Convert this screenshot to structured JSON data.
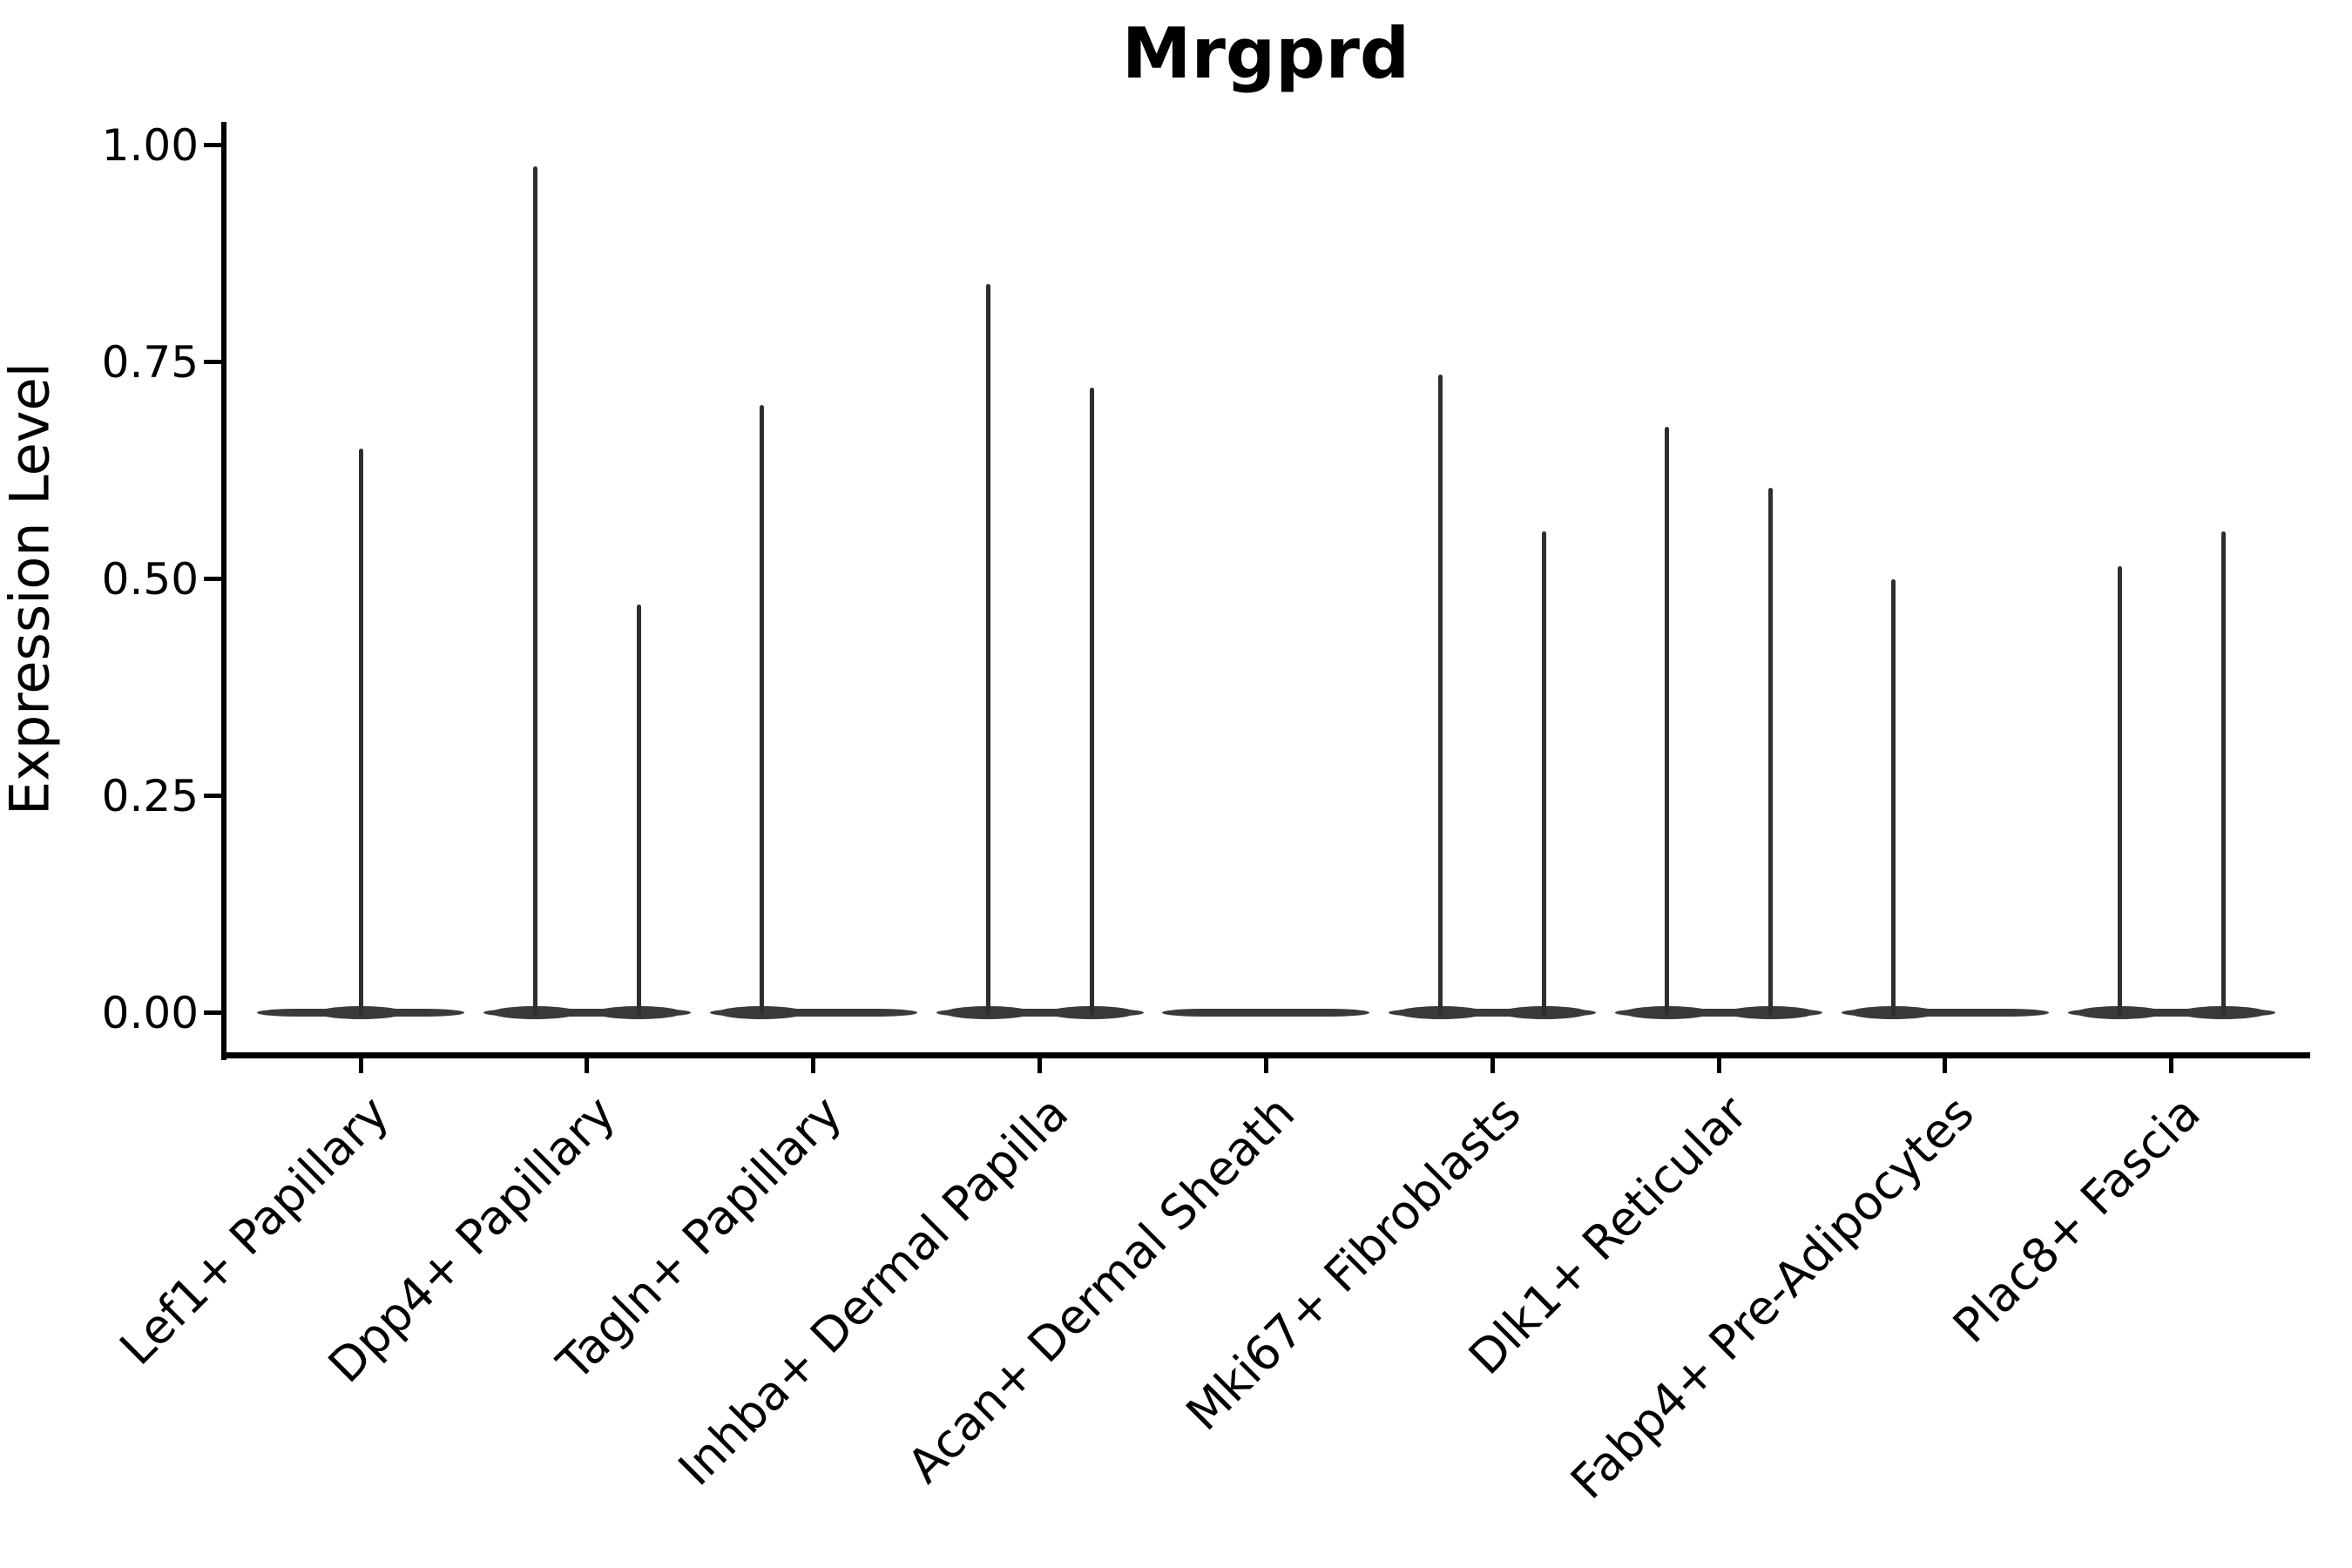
{
  "chart_data": {
    "type": "violin",
    "title": "Mrgprd",
    "ylabel": "Expression Level",
    "xlabel": "",
    "ylim": [
      0,
      1.05
    ],
    "grid": false,
    "legend_position": "none",
    "yticks": [
      {
        "value": 1.0,
        "label": "1.00"
      },
      {
        "value": 0.75,
        "label": "0.75"
      },
      {
        "value": 0.5,
        "label": "0.50"
      },
      {
        "value": 0.25,
        "label": "0.25"
      },
      {
        "value": 0.0,
        "label": "0.00"
      }
    ],
    "categories": [
      "Lef1+ Papillary",
      "Dpp4+ Papillary",
      "Tagln+ Papillary",
      "Inhba+ Dermal Papilla",
      "Acan+ Dermal Sheath",
      "Mki67+ Fibroblasts",
      "Dlk1+ Reticular",
      "Fabp4+ Pre-Adipocytes",
      "Plac8+ Fascia"
    ],
    "violins": [
      {
        "category": "Lef1+ Papillary",
        "baseline_value": 0.0,
        "spikes": [
          {
            "position": "center",
            "max_expression": 0.65
          }
        ]
      },
      {
        "category": "Dpp4+ Papillary",
        "baseline_value": 0.0,
        "spikes": [
          {
            "position": "left",
            "max_expression": 0.975
          },
          {
            "position": "right",
            "max_expression": 0.47
          }
        ]
      },
      {
        "category": "Tagln+ Papillary",
        "baseline_value": 0.0,
        "spikes": [
          {
            "position": "left",
            "max_expression": 0.7
          }
        ]
      },
      {
        "category": "Inhba+ Dermal Papilla",
        "baseline_value": 0.0,
        "spikes": [
          {
            "position": "left",
            "max_expression": 0.84
          },
          {
            "position": "right",
            "max_expression": 0.72
          }
        ]
      },
      {
        "category": "Acan+ Dermal Sheath",
        "baseline_value": 0.0,
        "spikes": []
      },
      {
        "category": "Mki67+ Fibroblasts",
        "baseline_value": 0.0,
        "spikes": [
          {
            "position": "left",
            "max_expression": 0.735
          },
          {
            "position": "right",
            "max_expression": 0.555
          }
        ]
      },
      {
        "category": "Dlk1+ Reticular",
        "baseline_value": 0.0,
        "spikes": [
          {
            "position": "left",
            "max_expression": 0.675
          },
          {
            "position": "right",
            "max_expression": 0.605
          }
        ]
      },
      {
        "category": "Fabp4+ Pre-Adipocytes",
        "baseline_value": 0.0,
        "spikes": [
          {
            "position": "left",
            "max_expression": 0.5
          }
        ]
      },
      {
        "category": "Plac8+ Fascia",
        "baseline_value": 0.0,
        "spikes": [
          {
            "position": "left",
            "max_expression": 0.515
          },
          {
            "position": "right",
            "max_expression": 0.555
          }
        ]
      }
    ],
    "colors": {
      "violin": "#2e2e2e",
      "violin_base": "#3a3a3a",
      "axis": "#000000",
      "text": "#000000",
      "background": "#ffffff"
    }
  }
}
